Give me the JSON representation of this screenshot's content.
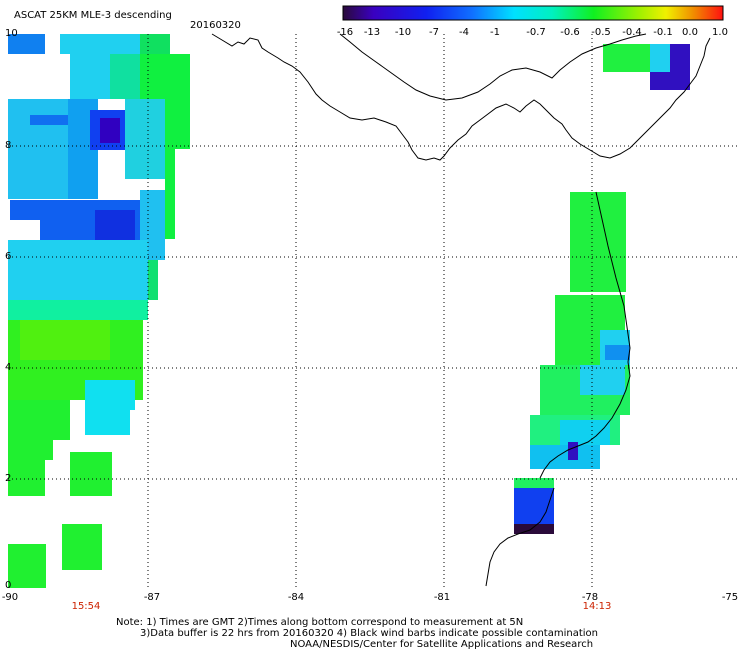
{
  "title": "ASCAT 25KM MLE-3 descending",
  "date": "20160320",
  "colorbar": {
    "ticks": [
      "-16",
      "-13",
      "-10",
      "-7",
      "-4",
      "-1",
      "-0.7",
      "-0.6",
      "-0.5",
      "-0.4",
      "-0.1",
      "0.0",
      "1.0"
    ]
  },
  "axes": {
    "lon_labels": [
      "-90",
      "-87",
      "-84",
      "-81",
      "-78",
      "-75"
    ],
    "lat_labels": [
      "10",
      "8",
      "6",
      "4",
      "2",
      "0"
    ]
  },
  "pass_times": [
    "15:54",
    "14:13"
  ],
  "notes": [
    "Note: 1) Times are GMT 2)Times along bottom correspond to measurement at 5N",
    "3)Data buffer is 22 hrs from 20160320 4) Black wind barbs indicate possible contamination",
    "NOAA/NESDIS/Center for Satellite Applications and Research"
  ],
  "palette": {
    "dark_purple": "#2a0a3a",
    "indigo": "#3a00c0",
    "blue": "#1050f0",
    "light_blue": "#20a0ff",
    "cyan": "#00f0f0",
    "green": "#10f010",
    "light_green": "#60f040",
    "yellow": "#f0f000",
    "orange": "#f08000",
    "red": "#ff1010",
    "grid_line": "#000000",
    "time_label": "#cc2200"
  }
}
